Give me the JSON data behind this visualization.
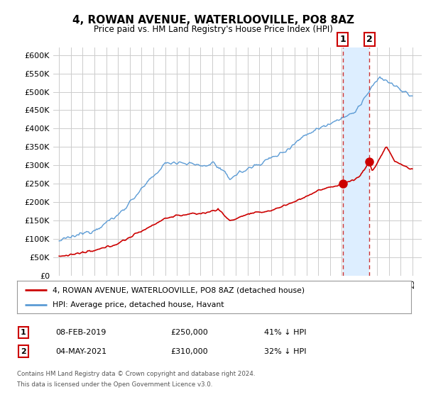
{
  "title": "4, ROWAN AVENUE, WATERLOOVILLE, PO8 8AZ",
  "subtitle": "Price paid vs. HM Land Registry's House Price Index (HPI)",
  "ylim": [
    0,
    620000
  ],
  "yticks": [
    0,
    50000,
    100000,
    150000,
    200000,
    250000,
    300000,
    350000,
    400000,
    450000,
    500000,
    550000,
    600000
  ],
  "legend_red": "4, ROWAN AVENUE, WATERLOOVILLE, PO8 8AZ (detached house)",
  "legend_blue": "HPI: Average price, detached house, Havant",
  "transaction1_date": "08-FEB-2019",
  "transaction1_price": "£250,000",
  "transaction1_hpi": "41% ↓ HPI",
  "transaction2_date": "04-MAY-2021",
  "transaction2_price": "£310,000",
  "transaction2_hpi": "32% ↓ HPI",
  "footnote1": "Contains HM Land Registry data © Crown copyright and database right 2024.",
  "footnote2": "This data is licensed under the Open Government Licence v3.0.",
  "marker1_year": 2019.1,
  "marker1_y": 250000,
  "marker2_year": 2021.35,
  "marker2_y": 310000,
  "xlim_start": 1994.5,
  "xlim_end": 2025.8,
  "red_color": "#cc0000",
  "blue_color": "#5b9bd5",
  "shade_color": "#ddeeff",
  "vline_color": "#cc3333",
  "background_color": "#ffffff",
  "grid_color": "#cccccc",
  "box_edge_color": "#cc0000"
}
